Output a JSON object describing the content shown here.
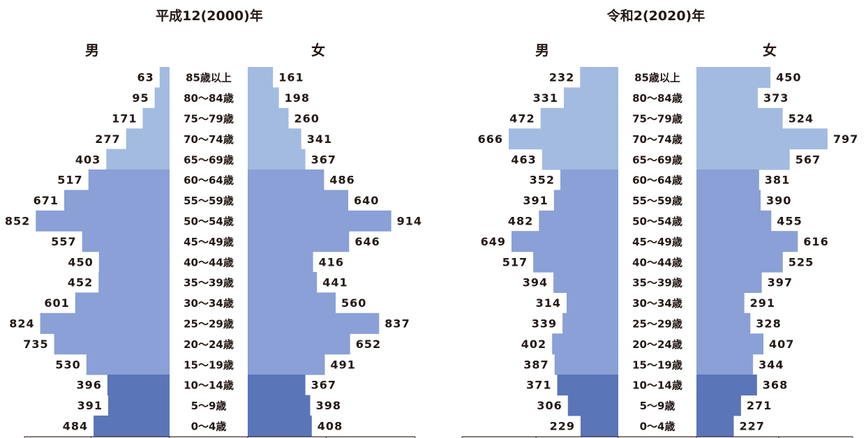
{
  "colors": {
    "elderly": "#a3bbe0",
    "working": "#8aa0d6",
    "youth": "#5a75b8",
    "axis": "#231815"
  },
  "chart_data": [
    {
      "type": "bar",
      "title": "平成12(2000)年",
      "male_label": "男",
      "female_label": "女",
      "categories": [
        "85歳以上",
        "80～84歳",
        "75～79歳",
        "70～74歳",
        "65～69歳",
        "60～64歳",
        "55～59歳",
        "50～54歳",
        "45～49歳",
        "40～44歳",
        "35～39歳",
        "30～34歳",
        "25～29歳",
        "20～24歳",
        "15～19歳",
        "10～14歳",
        "5～9歳",
        "0～4歳"
      ],
      "series": [
        {
          "name": "男",
          "values": [
            63,
            95,
            171,
            277,
            403,
            517,
            671,
            852,
            557,
            450,
            452,
            601,
            824,
            735,
            530,
            396,
            391,
            484
          ]
        },
        {
          "name": "女",
          "values": [
            161,
            198,
            260,
            341,
            367,
            486,
            640,
            914,
            646,
            416,
            441,
            560,
            837,
            652,
            491,
            367,
            398,
            408
          ]
        }
      ]
    },
    {
      "type": "bar",
      "title": "令和2(2020)年",
      "male_label": "男",
      "female_label": "女",
      "categories": [
        "85歳以上",
        "80～84歳",
        "75～79歳",
        "70～74歳",
        "65～69歳",
        "60～64歳",
        "55～59歳",
        "50～54歳",
        "45～49歳",
        "40～44歳",
        "35～39歳",
        "30～34歳",
        "25～29歳",
        "20～24歳",
        "15～19歳",
        "10～14歳",
        "5～9歳",
        "0～4歳"
      ],
      "series": [
        {
          "name": "男",
          "values": [
            232,
            331,
            472,
            666,
            463,
            352,
            391,
            482,
            649,
            517,
            394,
            314,
            339,
            402,
            387,
            371,
            306,
            229
          ]
        },
        {
          "name": "女",
          "values": [
            450,
            373,
            524,
            797,
            567,
            381,
            390,
            455,
            616,
            525,
            397,
            291,
            328,
            407,
            344,
            368,
            271,
            227
          ]
        }
      ]
    }
  ]
}
